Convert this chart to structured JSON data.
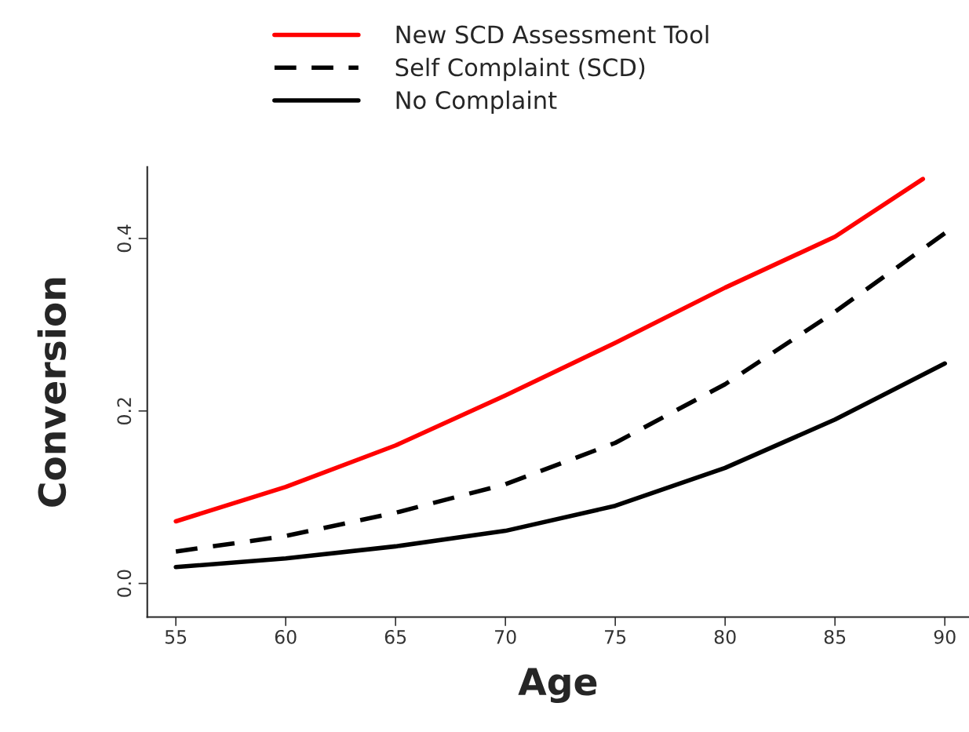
{
  "chart_data": {
    "type": "line",
    "xlabel": "Age",
    "ylabel": "Conversion",
    "x": [
      55,
      60,
      65,
      70,
      75,
      80,
      85,
      90
    ],
    "series": [
      {
        "name": "New SCD Assessment Tool",
        "color": "#ff0000",
        "line_style": "solid",
        "x": [
          55,
          60,
          65,
          70,
          75,
          80,
          85,
          89
        ],
        "values": [
          0.072,
          0.112,
          0.16,
          0.218,
          0.279,
          0.343,
          0.402,
          0.469
        ]
      },
      {
        "name": "Self Complaint (SCD)",
        "color": "#000000",
        "line_style": "dashed",
        "values": [
          0.037,
          0.055,
          0.082,
          0.115,
          0.163,
          0.231,
          0.315,
          0.406
        ]
      },
      {
        "name": "No Complaint",
        "color": "#000000",
        "line_style": "solid",
        "values": [
          0.019,
          0.029,
          0.043,
          0.061,
          0.09,
          0.134,
          0.19,
          0.255
        ]
      }
    ],
    "xlim": [
      53.7,
      91.1
    ],
    "ylim": [
      -0.039,
      0.483
    ],
    "xticks": [
      55,
      60,
      65,
      70,
      75,
      80,
      85,
      90
    ],
    "yticks": [
      {
        "value": 0.0,
        "label": "0.0"
      },
      {
        "value": 0.2,
        "label": "0.2"
      },
      {
        "value": 0.4,
        "label": "0.4"
      }
    ],
    "grid": false,
    "legend": "top",
    "marker": "none"
  }
}
